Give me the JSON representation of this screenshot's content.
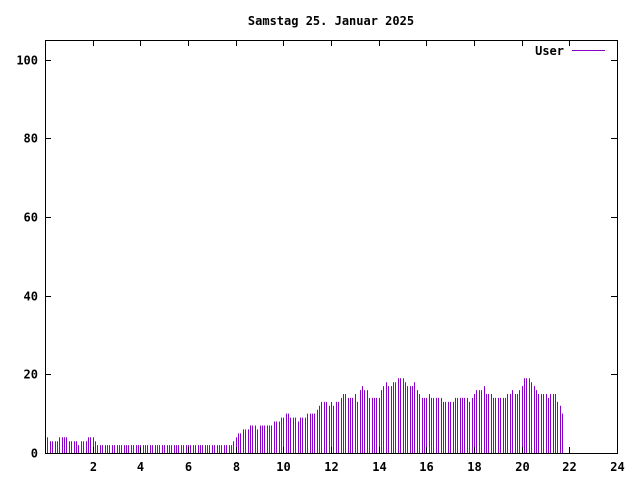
{
  "chart_data": {
    "type": "bar",
    "title": "Samstag 25. Januar 2025",
    "xlabel": "",
    "ylabel": "",
    "xlim": [
      0,
      24
    ],
    "ylim": [
      0,
      105
    ],
    "x_ticks": [
      2,
      4,
      6,
      8,
      10,
      12,
      14,
      16,
      18,
      20,
      22,
      24
    ],
    "y_ticks": [
      0,
      20,
      40,
      60,
      80,
      100
    ],
    "grid": false,
    "legend_position": "top-right",
    "series": [
      {
        "name": "User",
        "color": "#8b00c8",
        "interval_hours": 0.1,
        "values": [
          5,
          4,
          3,
          3,
          3,
          3,
          4,
          4,
          4,
          4,
          3,
          3,
          3,
          3,
          2,
          3,
          3,
          3,
          4,
          4,
          4,
          3,
          2,
          2,
          2,
          2,
          2,
          2,
          2,
          2,
          2,
          2,
          2,
          2,
          2,
          2,
          2,
          2,
          2,
          2,
          2,
          2,
          2,
          2,
          2,
          2,
          2,
          2,
          2,
          2,
          2,
          2,
          2,
          2,
          2,
          2,
          2,
          2,
          2,
          2,
          2,
          2,
          2,
          2,
          2,
          2,
          2,
          2,
          2,
          2,
          2,
          2,
          2,
          2,
          2,
          2,
          2,
          2,
          2,
          3,
          4,
          5,
          5,
          6,
          6,
          6,
          7,
          7,
          7,
          6,
          7,
          7,
          7,
          7,
          7,
          7,
          8,
          8,
          8,
          9,
          9,
          10,
          10,
          9,
          9,
          9,
          8,
          9,
          9,
          9,
          10,
          10,
          10,
          10,
          11,
          12,
          13,
          13,
          13,
          12,
          13,
          12,
          13,
          13,
          14,
          15,
          15,
          14,
          14,
          14,
          15,
          13,
          16,
          17,
          16,
          16,
          14,
          14,
          14,
          14,
          14,
          16,
          17,
          18,
          17,
          17,
          18,
          18,
          19,
          19,
          19,
          18,
          17,
          17,
          17,
          18,
          16,
          15,
          14,
          14,
          14,
          15,
          14,
          14,
          14,
          14,
          14,
          13,
          13,
          13,
          13,
          13,
          14,
          14,
          14,
          14,
          14,
          14,
          13,
          14,
          15,
          16,
          16,
          16,
          17,
          15,
          15,
          15,
          14,
          14,
          14,
          14,
          14,
          14,
          15,
          15,
          16,
          15,
          15,
          16,
          17,
          19,
          19,
          19,
          18,
          17,
          16,
          15,
          15,
          15,
          15,
          14,
          15,
          15,
          15,
          13,
          12,
          10
        ]
      }
    ]
  }
}
